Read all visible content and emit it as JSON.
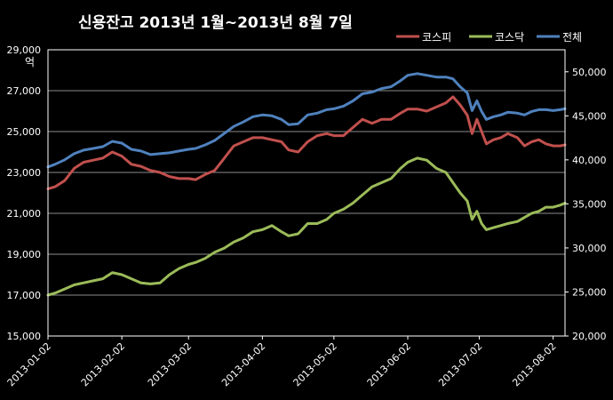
{
  "chart_data": {
    "type": "line",
    "title": "신용잔고 2013년 1월~2013년 8월 7일",
    "y_left_unit": "억",
    "y_left_range": [
      15000,
      29000
    ],
    "y_left_ticks": [
      "15,000",
      "17,000",
      "19,000",
      "21,000",
      "23,000",
      "25,000",
      "27,000",
      "29,000"
    ],
    "y_right_range": [
      20000,
      52500
    ],
    "y_right_ticks": [
      "20,000",
      "25,000",
      "30,000",
      "35,000",
      "40,000",
      "45,000",
      "50,000"
    ],
    "x_ticks": [
      "2013-01-02",
      "2013-02-02",
      "2013-03-02",
      "2013-04-02",
      "2013-05-02",
      "2013-06-02",
      "2013-07-02",
      "2013-08-02"
    ],
    "x_range": [
      "2013-01-02",
      "2013-08-07"
    ],
    "grid": true,
    "legend_position": "top-right",
    "series": [
      {
        "name": "코스피",
        "axis": "left",
        "color": "#c0504d",
        "points": [
          [
            "2013-01-02",
            22200
          ],
          [
            "2013-01-05",
            22300
          ],
          [
            "2013-01-09",
            22600
          ],
          [
            "2013-01-13",
            23200
          ],
          [
            "2013-01-17",
            23500
          ],
          [
            "2013-01-21",
            23600
          ],
          [
            "2013-01-25",
            23700
          ],
          [
            "2013-01-29",
            24000
          ],
          [
            "2013-02-02",
            23800
          ],
          [
            "2013-02-06",
            23400
          ],
          [
            "2013-02-10",
            23300
          ],
          [
            "2013-02-14",
            23100
          ],
          [
            "2013-02-18",
            23000
          ],
          [
            "2013-02-22",
            22800
          ],
          [
            "2013-02-26",
            22700
          ],
          [
            "2013-03-02",
            22700
          ],
          [
            "2013-03-05",
            22650
          ],
          [
            "2013-03-09",
            22900
          ],
          [
            "2013-03-13",
            23100
          ],
          [
            "2013-03-17",
            23700
          ],
          [
            "2013-03-21",
            24300
          ],
          [
            "2013-03-25",
            24500
          ],
          [
            "2013-03-29",
            24700
          ],
          [
            "2013-04-02",
            24700
          ],
          [
            "2013-04-06",
            24600
          ],
          [
            "2013-04-10",
            24500
          ],
          [
            "2013-04-13",
            24100
          ],
          [
            "2013-04-17",
            24000
          ],
          [
            "2013-04-21",
            24500
          ],
          [
            "2013-04-25",
            24800
          ],
          [
            "2013-04-29",
            24900
          ],
          [
            "2013-05-02",
            24800
          ],
          [
            "2013-05-06",
            24800
          ],
          [
            "2013-05-10",
            25200
          ],
          [
            "2013-05-14",
            25600
          ],
          [
            "2013-05-18",
            25400
          ],
          [
            "2013-05-22",
            25600
          ],
          [
            "2013-05-26",
            25600
          ],
          [
            "2013-05-30",
            25900
          ],
          [
            "2013-06-02",
            26100
          ],
          [
            "2013-06-06",
            26100
          ],
          [
            "2013-06-10",
            26000
          ],
          [
            "2013-06-14",
            26200
          ],
          [
            "2013-06-18",
            26400
          ],
          [
            "2013-06-21",
            26700
          ],
          [
            "2013-06-24",
            26300
          ],
          [
            "2013-06-27",
            25800
          ],
          [
            "2013-06-29",
            24900
          ],
          [
            "2013-07-01",
            25600
          ],
          [
            "2013-07-03",
            25000
          ],
          [
            "2013-07-05",
            24400
          ],
          [
            "2013-07-08",
            24600
          ],
          [
            "2013-07-11",
            24700
          ],
          [
            "2013-07-14",
            24900
          ],
          [
            "2013-07-18",
            24700
          ],
          [
            "2013-07-21",
            24300
          ],
          [
            "2013-07-24",
            24500
          ],
          [
            "2013-07-27",
            24600
          ],
          [
            "2013-07-30",
            24400
          ],
          [
            "2013-08-02",
            24300
          ],
          [
            "2013-08-05",
            24300
          ],
          [
            "2013-08-07",
            24350
          ]
        ]
      },
      {
        "name": "코스닥",
        "axis": "left",
        "color": "#9bbb59",
        "points": [
          [
            "2013-01-02",
            17000
          ],
          [
            "2013-01-05",
            17100
          ],
          [
            "2013-01-09",
            17300
          ],
          [
            "2013-01-13",
            17500
          ],
          [
            "2013-01-17",
            17600
          ],
          [
            "2013-01-21",
            17700
          ],
          [
            "2013-01-25",
            17800
          ],
          [
            "2013-01-29",
            18100
          ],
          [
            "2013-02-02",
            18000
          ],
          [
            "2013-02-06",
            17800
          ],
          [
            "2013-02-10",
            17600
          ],
          [
            "2013-02-14",
            17550
          ],
          [
            "2013-02-18",
            17600
          ],
          [
            "2013-02-22",
            18000
          ],
          [
            "2013-02-26",
            18300
          ],
          [
            "2013-03-02",
            18500
          ],
          [
            "2013-03-05",
            18600
          ],
          [
            "2013-03-09",
            18800
          ],
          [
            "2013-03-13",
            19100
          ],
          [
            "2013-03-17",
            19300
          ],
          [
            "2013-03-21",
            19600
          ],
          [
            "2013-03-25",
            19800
          ],
          [
            "2013-03-29",
            20100
          ],
          [
            "2013-04-02",
            20200
          ],
          [
            "2013-04-06",
            20400
          ],
          [
            "2013-04-10",
            20100
          ],
          [
            "2013-04-13",
            19900
          ],
          [
            "2013-04-17",
            20000
          ],
          [
            "2013-04-21",
            20500
          ],
          [
            "2013-04-25",
            20500
          ],
          [
            "2013-04-29",
            20700
          ],
          [
            "2013-05-02",
            21000
          ],
          [
            "2013-05-06",
            21200
          ],
          [
            "2013-05-10",
            21500
          ],
          [
            "2013-05-14",
            21900
          ],
          [
            "2013-05-18",
            22300
          ],
          [
            "2013-05-22",
            22500
          ],
          [
            "2013-05-26",
            22700
          ],
          [
            "2013-05-30",
            23200
          ],
          [
            "2013-06-02",
            23500
          ],
          [
            "2013-06-06",
            23700
          ],
          [
            "2013-06-10",
            23600
          ],
          [
            "2013-06-14",
            23200
          ],
          [
            "2013-06-18",
            23000
          ],
          [
            "2013-06-21",
            22500
          ],
          [
            "2013-06-24",
            22000
          ],
          [
            "2013-06-27",
            21600
          ],
          [
            "2013-06-29",
            20700
          ],
          [
            "2013-07-01",
            21100
          ],
          [
            "2013-07-03",
            20500
          ],
          [
            "2013-07-05",
            20200
          ],
          [
            "2013-07-08",
            20300
          ],
          [
            "2013-07-11",
            20400
          ],
          [
            "2013-07-14",
            20500
          ],
          [
            "2013-07-18",
            20600
          ],
          [
            "2013-07-21",
            20800
          ],
          [
            "2013-07-24",
            21000
          ],
          [
            "2013-07-27",
            21100
          ],
          [
            "2013-07-30",
            21300
          ],
          [
            "2013-08-02",
            21300
          ],
          [
            "2013-08-05",
            21400
          ],
          [
            "2013-08-07",
            21500
          ]
        ]
      },
      {
        "name": "전체",
        "axis": "right",
        "color": "#4f81bd",
        "points": [
          [
            "2013-01-02",
            39200
          ],
          [
            "2013-01-05",
            39500
          ],
          [
            "2013-01-09",
            40000
          ],
          [
            "2013-01-13",
            40700
          ],
          [
            "2013-01-17",
            41100
          ],
          [
            "2013-01-21",
            41300
          ],
          [
            "2013-01-25",
            41500
          ],
          [
            "2013-01-29",
            42100
          ],
          [
            "2013-02-02",
            41900
          ],
          [
            "2013-02-06",
            41200
          ],
          [
            "2013-02-10",
            41000
          ],
          [
            "2013-02-14",
            40600
          ],
          [
            "2013-02-18",
            40700
          ],
          [
            "2013-02-22",
            40800
          ],
          [
            "2013-02-26",
            41000
          ],
          [
            "2013-03-02",
            41200
          ],
          [
            "2013-03-05",
            41300
          ],
          [
            "2013-03-09",
            41700
          ],
          [
            "2013-03-13",
            42200
          ],
          [
            "2013-03-17",
            43000
          ],
          [
            "2013-03-21",
            43800
          ],
          [
            "2013-03-25",
            44300
          ],
          [
            "2013-03-29",
            44900
          ],
          [
            "2013-04-02",
            45100
          ],
          [
            "2013-04-06",
            45000
          ],
          [
            "2013-04-10",
            44600
          ],
          [
            "2013-04-13",
            44000
          ],
          [
            "2013-04-17",
            44100
          ],
          [
            "2013-04-21",
            45100
          ],
          [
            "2013-04-25",
            45300
          ],
          [
            "2013-04-29",
            45700
          ],
          [
            "2013-05-02",
            45800
          ],
          [
            "2013-05-06",
            46100
          ],
          [
            "2013-05-10",
            46700
          ],
          [
            "2013-05-14",
            47500
          ],
          [
            "2013-05-18",
            47700
          ],
          [
            "2013-05-22",
            48100
          ],
          [
            "2013-05-26",
            48300
          ],
          [
            "2013-05-30",
            49000
          ],
          [
            "2013-06-02",
            49600
          ],
          [
            "2013-06-06",
            49800
          ],
          [
            "2013-06-10",
            49600
          ],
          [
            "2013-06-14",
            49400
          ],
          [
            "2013-06-18",
            49400
          ],
          [
            "2013-06-21",
            49200
          ],
          [
            "2013-06-24",
            48300
          ],
          [
            "2013-06-27",
            47600
          ],
          [
            "2013-06-29",
            45600
          ],
          [
            "2013-07-01",
            46700
          ],
          [
            "2013-07-03",
            45500
          ],
          [
            "2013-07-05",
            44600
          ],
          [
            "2013-07-08",
            44900
          ],
          [
            "2013-07-11",
            45100
          ],
          [
            "2013-07-14",
            45400
          ],
          [
            "2013-07-18",
            45300
          ],
          [
            "2013-07-21",
            45100
          ],
          [
            "2013-07-24",
            45500
          ],
          [
            "2013-07-27",
            45700
          ],
          [
            "2013-07-30",
            45700
          ],
          [
            "2013-08-02",
            45600
          ],
          [
            "2013-08-05",
            45700
          ],
          [
            "2013-08-07",
            45800
          ]
        ]
      }
    ]
  }
}
